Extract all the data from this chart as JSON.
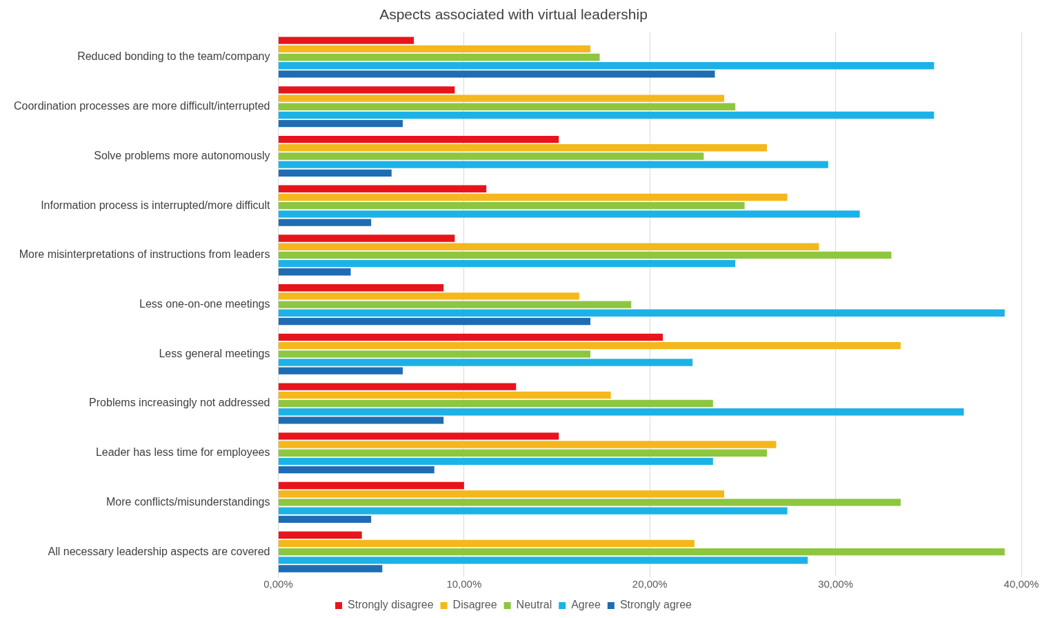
{
  "chart_data": {
    "type": "bar",
    "orientation": "horizontal",
    "title": "Aspects associated with virtual leadership",
    "categories": [
      "Reduced bonding to the team/company",
      "Coordination processes are more difficult/interrupted",
      "Solve problems more autonomously",
      "Information process is interrupted/more difficult",
      "More misinterpretations of instructions from leaders",
      "Less one-on-one meetings",
      "Less general meetings",
      "Problems increasingly not addressed",
      "Leader has less time for employees",
      "More conflicts/misunderstandings",
      "All necessary leadership aspects are covered"
    ],
    "series": [
      {
        "name": "Strongly disagree",
        "color": "#e8141c",
        "values": [
          7.3,
          9.5,
          15.1,
          11.2,
          9.5,
          8.9,
          20.7,
          12.8,
          15.1,
          10.0,
          4.5
        ]
      },
      {
        "name": "Disagree",
        "color": "#f4b81c",
        "values": [
          16.8,
          24.0,
          26.3,
          27.4,
          29.1,
          16.2,
          33.5,
          17.9,
          26.8,
          24.0,
          22.4
        ]
      },
      {
        "name": "Neutral",
        "color": "#8dc63f",
        "values": [
          17.3,
          24.6,
          22.9,
          25.1,
          33.0,
          19.0,
          16.8,
          23.4,
          26.3,
          33.5,
          39.1
        ]
      },
      {
        "name": "Agree",
        "color": "#1cb2e8",
        "values": [
          35.3,
          35.3,
          29.6,
          31.3,
          24.6,
          39.1,
          22.3,
          36.9,
          23.4,
          27.4,
          28.5
        ]
      },
      {
        "name": "Strongly agree",
        "color": "#1f6cb4",
        "values": [
          23.5,
          6.7,
          6.1,
          5.0,
          3.9,
          16.8,
          6.7,
          8.9,
          8.4,
          5.0,
          5.6
        ]
      }
    ],
    "xlim": [
      0,
      40
    ],
    "xticks": [
      {
        "value": 0,
        "label": "0,00%"
      },
      {
        "value": 10,
        "label": "10,00%"
      },
      {
        "value": 20,
        "label": "20,00%"
      },
      {
        "value": 30,
        "label": "30,00%"
      },
      {
        "value": 40,
        "label": "40,00%"
      }
    ],
    "grid": "x",
    "legend": "bottom"
  }
}
